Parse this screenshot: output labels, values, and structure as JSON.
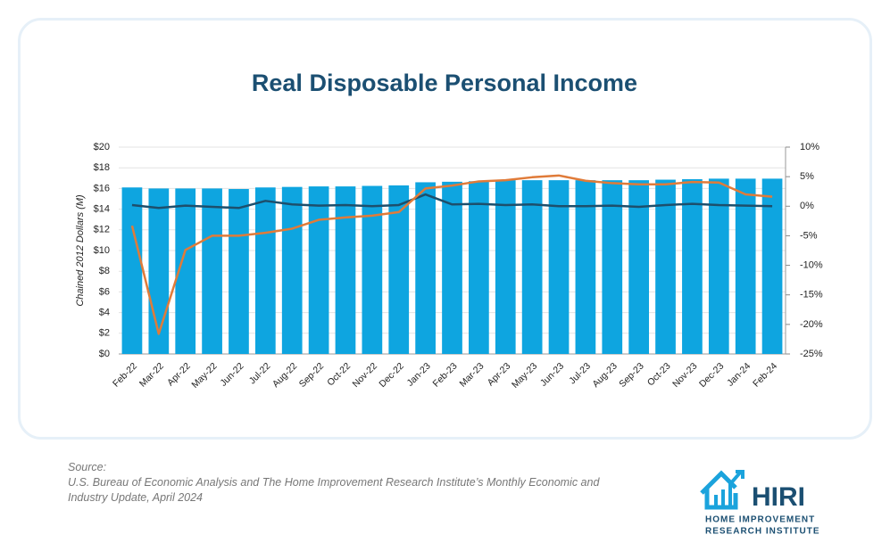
{
  "chart_data": {
    "type": "bar-line",
    "title": "Real Disposable Personal Income",
    "y_label": "Chained 2012 Dollars (M)",
    "categories": [
      "Feb-22",
      "Mar-22",
      "Apr-22",
      "May-22",
      "Jun-22",
      "Jul-22",
      "Aug-22",
      "Sep-22",
      "Oct-22",
      "Nov-22",
      "Dec-22",
      "Jan-23",
      "Feb-23",
      "Mar-23",
      "Apr-23",
      "May-23",
      "Jun-23",
      "Jul-23",
      "Aug-23",
      "Sep-23",
      "Oct-23",
      "Nov-23",
      "Dec-23",
      "Jan-24",
      "Feb-24"
    ],
    "series": [
      {
        "type": "bar",
        "color": "#0ea5e0",
        "values": [
          16.1,
          16.0,
          16.0,
          16.0,
          15.95,
          16.1,
          16.15,
          16.2,
          16.2,
          16.25,
          16.3,
          16.6,
          16.65,
          16.7,
          16.8,
          16.8,
          16.8,
          16.8,
          16.8,
          16.8,
          16.85,
          16.9,
          16.95,
          16.95,
          16.95
        ]
      },
      {
        "type": "line",
        "axis": "y2",
        "color": "#1d4f6c",
        "values": [
          0.2,
          -0.3,
          0.1,
          -0.1,
          -0.3,
          0.9,
          0.3,
          0.1,
          0.2,
          0.0,
          0.2,
          2.0,
          0.3,
          0.4,
          0.2,
          0.3,
          0.0,
          0.0,
          0.1,
          -0.1,
          0.2,
          0.4,
          0.2,
          0.1,
          0.0
        ]
      },
      {
        "type": "line",
        "axis": "y2",
        "color": "#e07b39",
        "values": [
          -3.3,
          -21.6,
          -7.4,
          -5.0,
          -5.0,
          -4.5,
          -3.8,
          -2.3,
          -1.9,
          -1.6,
          -1.0,
          3.0,
          3.5,
          4.2,
          4.4,
          4.9,
          5.2,
          4.3,
          3.9,
          3.7,
          3.7,
          4.1,
          4.0,
          2.0,
          1.6
        ]
      }
    ],
    "ylim": [
      0,
      20
    ],
    "yticks": [
      {
        "value": 0,
        "label": "$0"
      },
      {
        "value": 2,
        "label": "$2"
      },
      {
        "value": 4,
        "label": "$4"
      },
      {
        "value": 6,
        "label": "$6"
      },
      {
        "value": 8,
        "label": "$8"
      },
      {
        "value": 10,
        "label": "$10"
      },
      {
        "value": 12,
        "label": "$12"
      },
      {
        "value": 14,
        "label": "$14"
      },
      {
        "value": 16,
        "label": "$16"
      },
      {
        "value": 18,
        "label": "$18"
      },
      {
        "value": 20,
        "label": "$20"
      }
    ],
    "y2lim": [
      -25,
      10
    ],
    "y2ticks": [
      {
        "value": -25,
        "label": "-25%"
      },
      {
        "value": -20,
        "label": "-20%"
      },
      {
        "value": -15,
        "label": "-15%"
      },
      {
        "value": -10,
        "label": "-10%"
      },
      {
        "value": -5,
        "label": "-5%"
      },
      {
        "value": 0,
        "label": "0%"
      },
      {
        "value": 5,
        "label": "5%"
      },
      {
        "value": 10,
        "label": "10%"
      }
    ],
    "grid": true
  },
  "source": {
    "label": "Source:",
    "text": "U.S. Bureau of Economic Analysis and The Home Improvement Research Institute’s Monthly Economic and Industry Update, April 2024"
  },
  "logo": {
    "name": "HIRI",
    "line1": "HOME IMPROVEMENT",
    "line2": "RESEARCH INSTITUTE"
  }
}
